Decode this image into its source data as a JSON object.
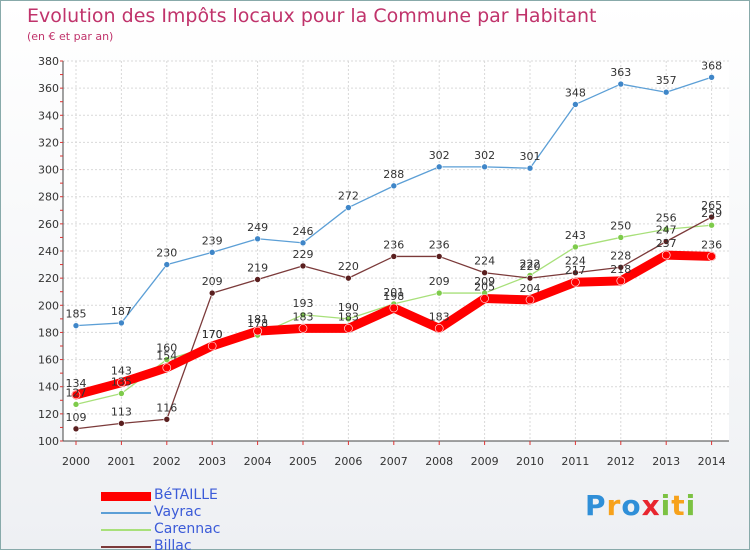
{
  "chart_data": {
    "type": "line",
    "title": "Evolution des Impôts locaux pour la Commune par Habitant",
    "subtitle": "(en € et par an)",
    "x": [
      "2000",
      "2001",
      "2002",
      "2003",
      "2004",
      "2005",
      "2006",
      "2007",
      "2008",
      "2009",
      "2010",
      "2011",
      "2012",
      "2013",
      "2014"
    ],
    "ylim": [
      100,
      380
    ],
    "yticks": [
      100,
      120,
      140,
      160,
      180,
      200,
      220,
      240,
      260,
      280,
      300,
      320,
      340,
      360,
      380
    ],
    "grid": true,
    "legend_position": "bottom-left",
    "series": [
      {
        "name": "BéTAILLE",
        "color": "#ff0000",
        "marker": "#ff0000",
        "width": 9,
        "values": [
          134,
          143,
          154,
          170,
          181,
          183,
          183,
          198,
          183,
          205,
          204,
          217,
          218,
          237,
          236
        ]
      },
      {
        "name": "Vayrac",
        "color": "#5c9fd6",
        "marker": "#3f86c8",
        "width": 1.3,
        "values": [
          185,
          187,
          230,
          239,
          249,
          246,
          272,
          288,
          302,
          302,
          301,
          348,
          363,
          357,
          368
        ]
      },
      {
        "name": "Carennac",
        "color": "#a8e07a",
        "marker": "#7ecb4b",
        "width": 1.3,
        "values": [
          127,
          135,
          160,
          170,
          178,
          193,
          190,
          201,
          209,
          209,
          222,
          243,
          250,
          256,
          259
        ]
      },
      {
        "name": "Billac",
        "color": "#7b3a3a",
        "marker": "#5a1f1f",
        "width": 1.3,
        "values": [
          109,
          113,
          116,
          209,
          219,
          229,
          220,
          236,
          236,
          224,
          220,
          224,
          228,
          247,
          265
        ]
      }
    ]
  },
  "logo": {
    "letters": [
      "P",
      "r",
      "o",
      "x",
      "i",
      "t",
      "i"
    ],
    "colors": [
      "#2f8fd8",
      "#f7a21b",
      "#2f8fd8",
      "#e8262f",
      "#7cc242",
      "#f7a21b",
      "#7cc242"
    ]
  }
}
